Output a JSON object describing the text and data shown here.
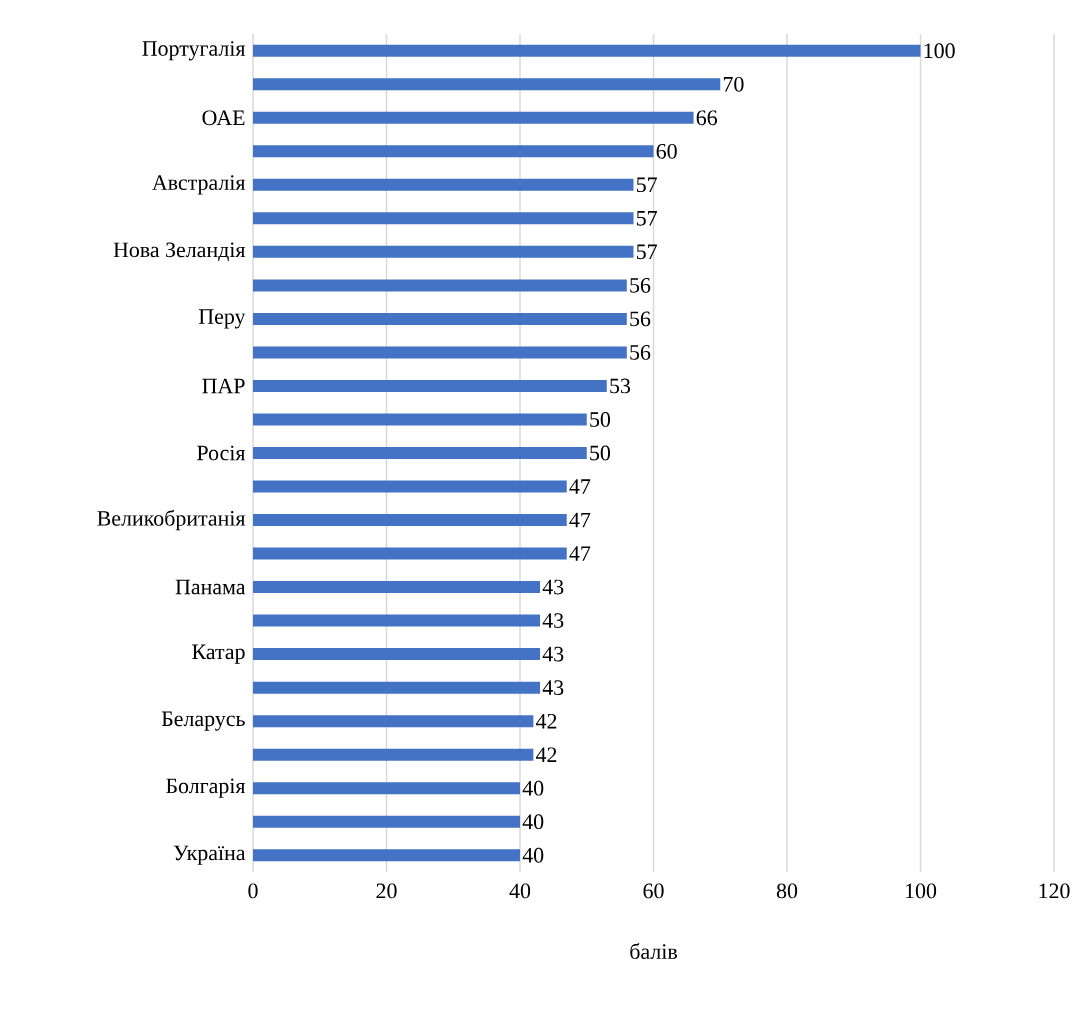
{
  "chart_data": {
    "type": "bar",
    "orientation": "horizontal",
    "xlabel": "балів",
    "categories": [
      "Португалія",
      null,
      "ОАЕ",
      null,
      "Австралія",
      null,
      "Нова Зеландія",
      null,
      "Перу",
      null,
      "ПАР",
      null,
      "Росія",
      null,
      "Великобританія",
      null,
      "Панама",
      null,
      "Катар",
      null,
      "Беларусь",
      null,
      "Болгарія",
      null,
      "Україна"
    ],
    "values": [
      100,
      70,
      66,
      60,
      57,
      57,
      57,
      56,
      56,
      56,
      53,
      50,
      50,
      47,
      47,
      47,
      43,
      43,
      43,
      43,
      42,
      42,
      40,
      40,
      40
    ],
    "color": "#4472c4",
    "xlim": [
      0,
      120
    ],
    "xticks": [
      0,
      20,
      40,
      60,
      80,
      100,
      120
    ],
    "grid": "x",
    "data_labels": true
  }
}
